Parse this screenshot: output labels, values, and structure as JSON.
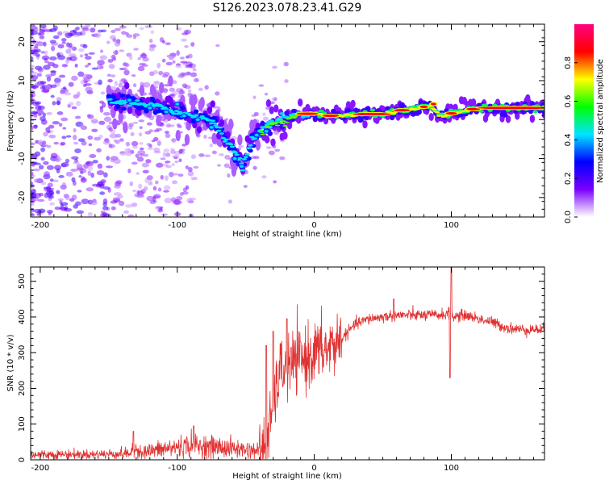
{
  "title": "S126.2023.078.23.41.G29",
  "chart_data": [
    {
      "type": "heatmap",
      "xlabel": "Height of straight line (km)",
      "ylabel": "Frequency (Hz)",
      "xlim": [
        -207,
        168
      ],
      "ylim": [
        -25,
        24.5
      ],
      "xticks": [
        -200,
        -100,
        0,
        100
      ],
      "yticks": [
        -20,
        -10,
        0,
        10,
        20
      ],
      "ytick_labels": [
        "-20",
        "-10",
        "0",
        "10",
        "20"
      ],
      "colorbar": {
        "label": "Normalized spectral amplitude",
        "range": [
          0,
          1
        ],
        "ticks": [
          "0.0",
          "0.2",
          "0.4",
          "0.6",
          "0.8"
        ],
        "colormap": [
          "#ffffff",
          "#7b00ff",
          "#0000ff",
          "#00e5ff",
          "#00ff00",
          "#ffff00",
          "#ff0000",
          "#ff0080"
        ]
      },
      "ridge": {
        "x": [
          -150,
          -130,
          -110,
          -90,
          -75,
          -60,
          -52,
          -45,
          -38,
          -30,
          -20,
          -10,
          0,
          10,
          25,
          50,
          70,
          85,
          92,
          100,
          120,
          168
        ],
        "y": [
          5,
          4,
          3,
          1,
          0,
          -7,
          -12,
          -5,
          -3,
          -1,
          0,
          1.5,
          1.5,
          0.8,
          1.2,
          1.5,
          2.5,
          3.5,
          1,
          1.5,
          3,
          3
        ]
      }
    },
    {
      "type": "line",
      "xlabel": "Height of straight line (km)",
      "ylabel": "SNR (10 * v/v)",
      "xlim": [
        -207,
        168
      ],
      "ylim": [
        0,
        540
      ],
      "xticks": [
        -200,
        -100,
        0,
        100
      ],
      "yticks": [
        0,
        100,
        200,
        300,
        400,
        500
      ],
      "color": "#e03030",
      "envelope": {
        "x": [
          -207,
          -160,
          -135,
          -130,
          -125,
          -110,
          -90,
          -70,
          -40,
          -35,
          -30,
          -25,
          -20,
          -10,
          0,
          10,
          20,
          30,
          40,
          50,
          60,
          75,
          90,
          99,
          100,
          101,
          110,
          120,
          130,
          140,
          150,
          168
        ],
        "y": [
          15,
          15,
          18,
          30,
          22,
          30,
          40,
          35,
          25,
          40,
          150,
          250,
          260,
          280,
          300,
          310,
          340,
          380,
          395,
          400,
          405,
          405,
          405,
          410,
          410,
          400,
          405,
          395,
          385,
          370,
          365,
          365
        ]
      },
      "spikes": [
        {
          "x": -132,
          "y": 80
        },
        {
          "x": -88,
          "y": 95
        },
        {
          "x": -35,
          "y": 320
        },
        {
          "x": -30,
          "y": 360
        },
        {
          "x": -20,
          "y": 395
        },
        {
          "x": -10,
          "y": 330
        },
        {
          "x": 58,
          "y": 450
        },
        {
          "x": 100,
          "y": 545
        },
        {
          "x": 99,
          "y": 230
        }
      ]
    }
  ]
}
